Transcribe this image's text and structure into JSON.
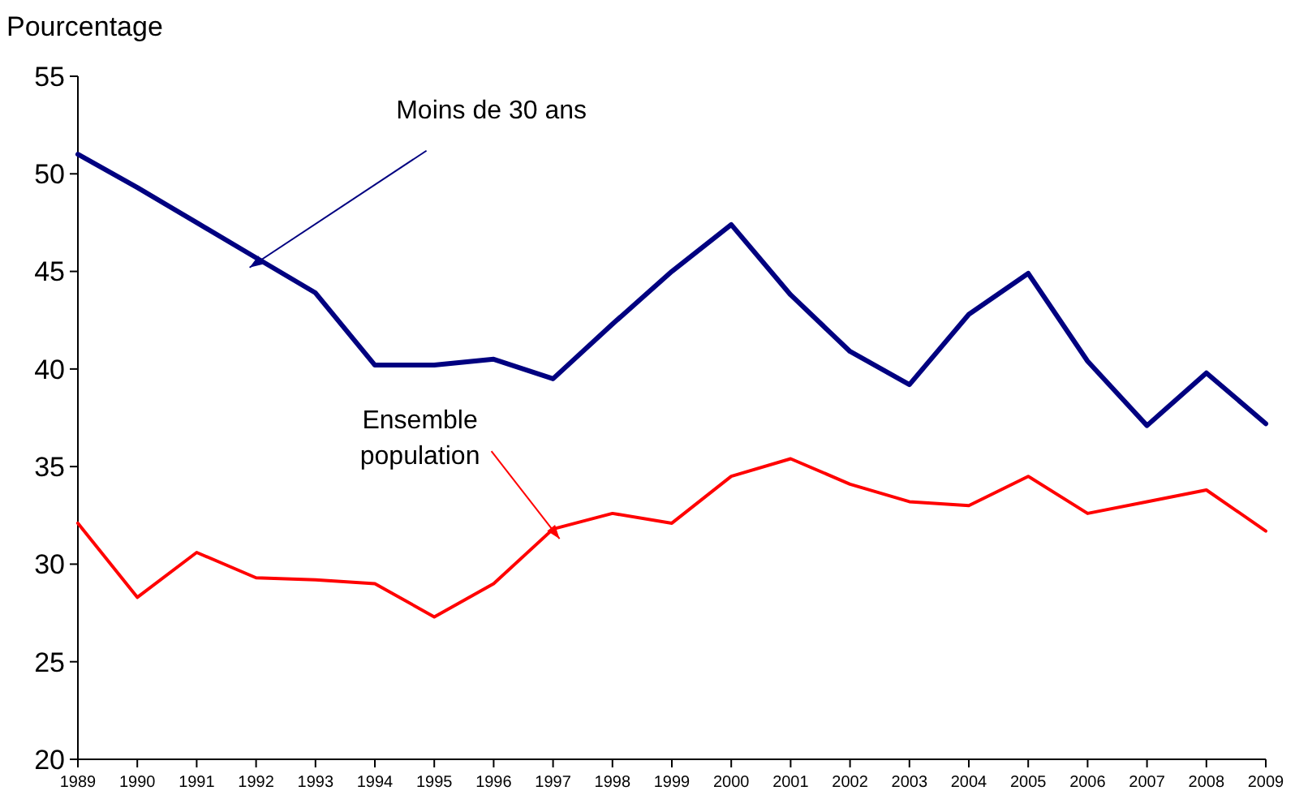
{
  "chart_data": {
    "type": "line",
    "ylabel": "Pourcentage",
    "categories": [
      "1989",
      "1990",
      "1991",
      "1992",
      "1993",
      "1994",
      "1995",
      "1996",
      "1997",
      "1998",
      "1999",
      "2000",
      "2001",
      "2002",
      "2003",
      "2004",
      "2005",
      "2006",
      "2007",
      "2008",
      "2009"
    ],
    "series": [
      {
        "color": "#000080",
        "values": [
          51.0,
          49.3,
          47.5,
          45.7,
          43.9,
          40.2,
          40.2,
          40.5,
          39.5,
          42.3,
          45.0,
          47.4,
          43.8,
          40.9,
          39.2,
          42.8,
          44.9,
          40.4,
          37.1,
          39.8,
          37.2
        ]
      },
      {
        "color": "#ff0000",
        "values": [
          32.1,
          28.3,
          30.6,
          29.3,
          29.2,
          29.0,
          27.3,
          29.0,
          31.8,
          32.6,
          32.1,
          34.5,
          35.4,
          34.1,
          33.2,
          33.0,
          34.5,
          32.6,
          33.2,
          33.8,
          31.7
        ]
      }
    ],
    "ylim": [
      20,
      55
    ],
    "yticks": [
      20,
      25,
      30,
      35,
      40,
      45,
      50,
      55
    ],
    "grid": false,
    "marker": "none",
    "line_style": "solid",
    "annotations": [
      {
        "text": "Moins de 30 ans",
        "x": "1992",
        "y": 45.7
      },
      {
        "text": "Ensemble population",
        "x": "1997",
        "y": 31.8
      }
    ]
  }
}
